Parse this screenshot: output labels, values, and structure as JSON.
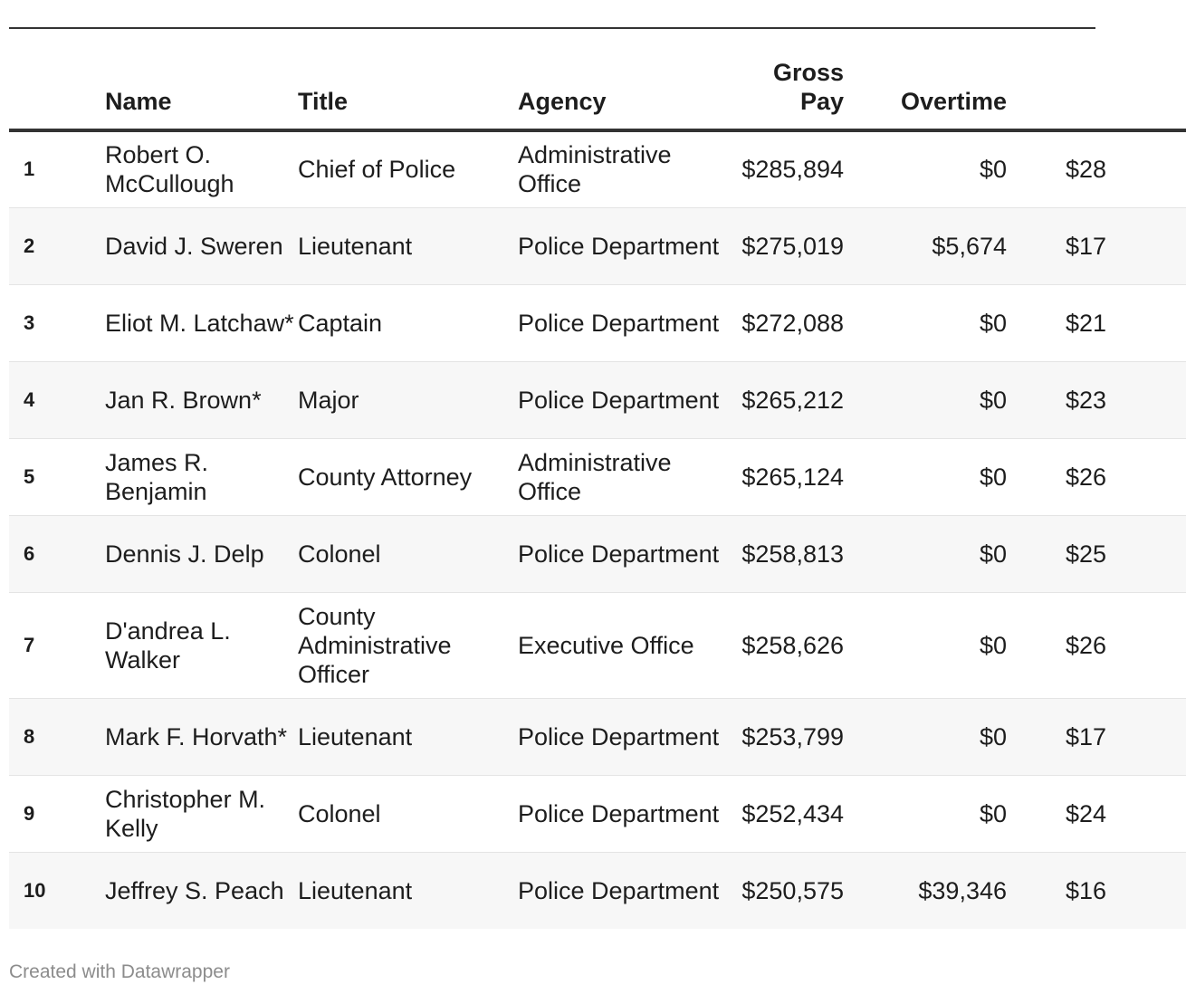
{
  "table": {
    "headers": {
      "rank": "",
      "name": "Name",
      "title": "Title",
      "agency": "Agency",
      "gross_line1": "Gross",
      "gross_line2": "Pay",
      "overtime": "Overtime",
      "base": ""
    },
    "rows": [
      {
        "rank": "1",
        "name": "Robert O. McCullough",
        "title": "Chief of Police",
        "agency": "Administrative Office",
        "gross": "$285,894",
        "overtime": "$0",
        "base": "$28"
      },
      {
        "rank": "2",
        "name": "David J. Sweren",
        "title": "Lieutenant",
        "agency": "Police Department",
        "gross": "$275,019",
        "overtime": "$5,674",
        "base": "$17"
      },
      {
        "rank": "3",
        "name": "Eliot M. Latchaw*",
        "title": "Captain",
        "agency": "Police Department",
        "gross": "$272,088",
        "overtime": "$0",
        "base": "$21"
      },
      {
        "rank": "4",
        "name": "Jan R. Brown*",
        "title": "Major",
        "agency": "Police Department",
        "gross": "$265,212",
        "overtime": "$0",
        "base": "$23"
      },
      {
        "rank": "5",
        "name": "James R. Benjamin",
        "title": "County Attorney",
        "agency": "Administrative Office",
        "gross": "$265,124",
        "overtime": "$0",
        "base": "$26"
      },
      {
        "rank": "6",
        "name": "Dennis J. Delp",
        "title": "Colonel",
        "agency": "Police Department",
        "gross": "$258,813",
        "overtime": "$0",
        "base": "$25"
      },
      {
        "rank": "7",
        "name": "D'andrea L. Walker",
        "title": "County Administrative Officer",
        "agency": "Executive Office",
        "gross": "$258,626",
        "overtime": "$0",
        "base": "$26"
      },
      {
        "rank": "8",
        "name": "Mark F. Horvath*",
        "title": "Lieutenant",
        "agency": "Police Department",
        "gross": "$253,799",
        "overtime": "$0",
        "base": "$17"
      },
      {
        "rank": "9",
        "name": "Christopher M. Kelly",
        "title": "Colonel",
        "agency": "Police Department",
        "gross": "$252,434",
        "overtime": "$0",
        "base": "$24"
      },
      {
        "rank": "10",
        "name": "Jeffrey S. Peach",
        "title": "Lieutenant",
        "agency": "Police Department",
        "gross": "$250,575",
        "overtime": "$39,346",
        "base": "$16"
      }
    ]
  },
  "footer": {
    "credit": "Created with Datawrapper"
  }
}
